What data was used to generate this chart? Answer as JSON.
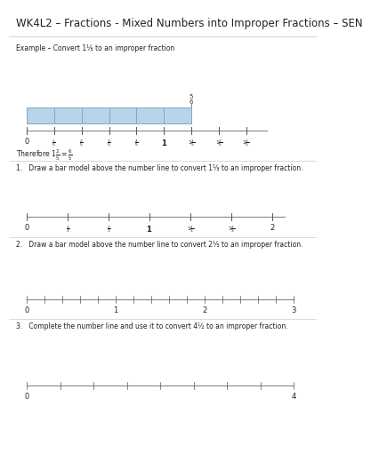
{
  "title": "WK4L2 – Fractions - Mixed Numbers into Improper Fractions – SEN",
  "title_fontsize": 8.5,
  "bg_color": "#ffffff",
  "example_text": "Example – Convert 1⅕ to an improper fraction",
  "therefore_text": "Therefore 1⅕ = ⁶₅",
  "q1_text": "1.   Draw a bar model above the number line to convert 1⅓ to an improper fraction.",
  "q2_text": "2.   Draw a bar model above the number line to convert 2⅕ to an improper fraction.",
  "q3_text": "3.   Complete the number line and use it to convert 4½ to an improper fraction.",
  "bar_color": "#b8d4e8",
  "bar_edge_color": "#7aaac8",
  "line_color": "#888888",
  "tick_color": "#555555",
  "text_color": "#222222",
  "separator_color": "#cccccc"
}
